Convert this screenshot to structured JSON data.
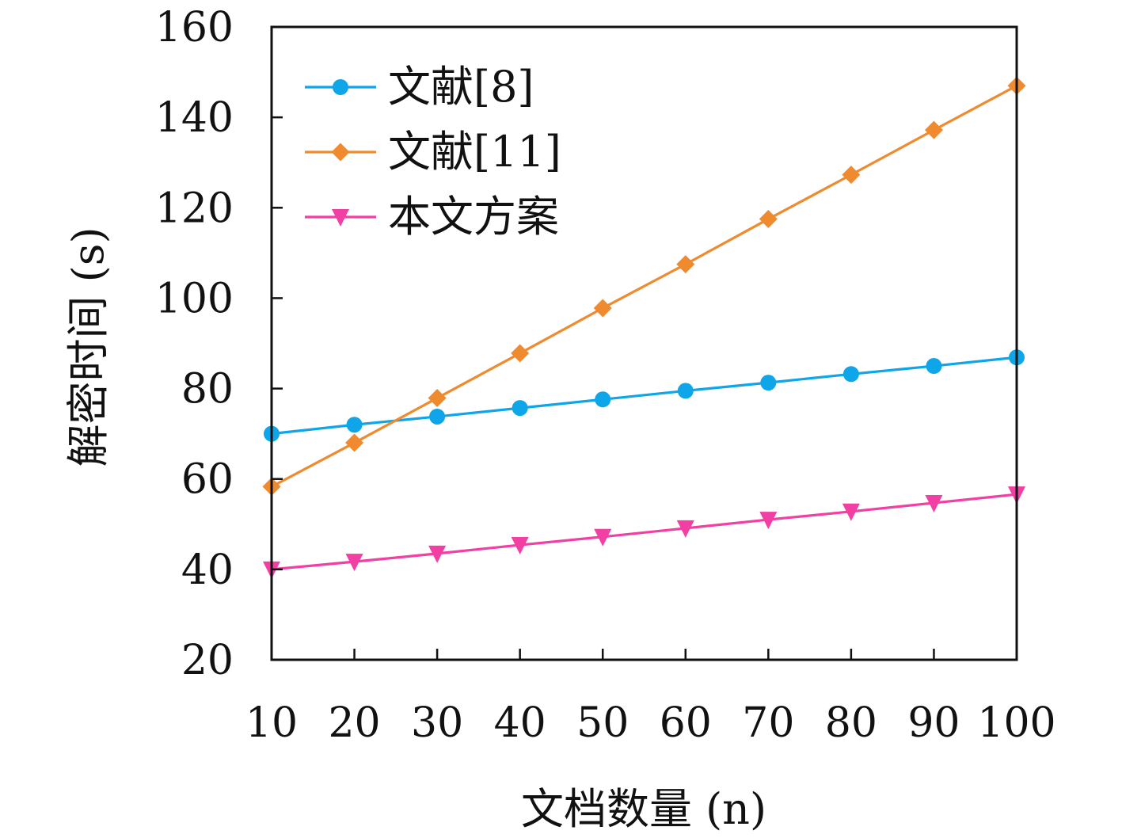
{
  "chart_data": {
    "type": "line",
    "title": "",
    "xlabel": "文档数量 (n)",
    "ylabel": "解密时间 (s)",
    "x": [
      10,
      20,
      30,
      40,
      50,
      60,
      70,
      80,
      90,
      100
    ],
    "xlim": [
      10,
      100
    ],
    "ylim": [
      20,
      160
    ],
    "yticks": [
      20,
      40,
      60,
      80,
      100,
      120,
      140,
      160
    ],
    "grid": false,
    "legend_position": "top-left",
    "series": [
      {
        "name": "文献[8]",
        "marker": "circle",
        "color": "#0ea5e9",
        "values": [
          70,
          72,
          73.8,
          75.7,
          77.6,
          79.5,
          81.3,
          83.2,
          85,
          86.9
        ]
      },
      {
        "name": "文献[11]",
        "marker": "diamond",
        "color": "#ef8a2f",
        "values": [
          58.3,
          68,
          77.9,
          87.8,
          97.8,
          107.5,
          117.5,
          127.3,
          137.2,
          147
        ]
      },
      {
        "name": "本文方案",
        "marker": "triangle-down",
        "color": "#f23fa3",
        "values": [
          40,
          41.7,
          43.5,
          45.4,
          47.2,
          49.1,
          51,
          52.8,
          54.7,
          56.6
        ]
      }
    ]
  }
}
